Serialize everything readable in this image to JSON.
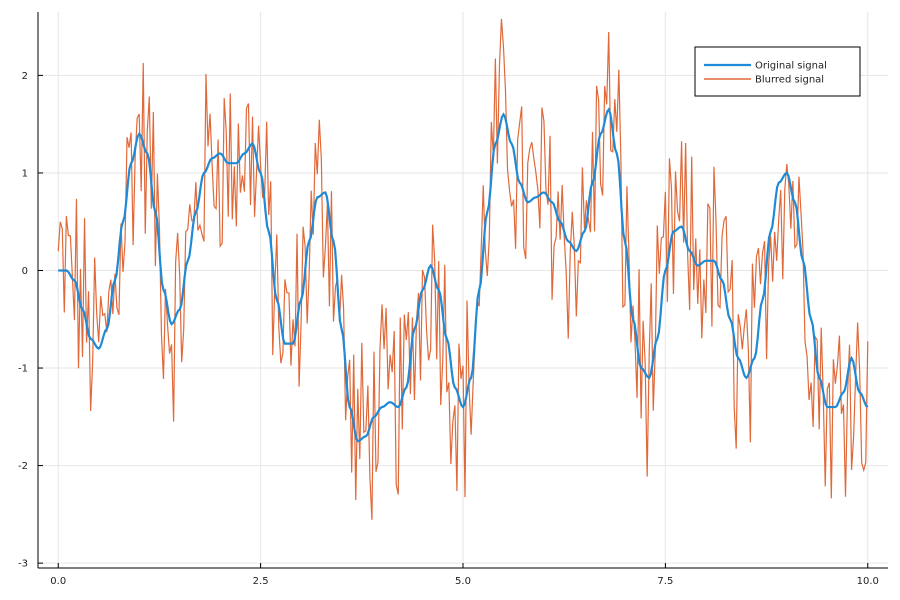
{
  "chart_data": {
    "type": "line",
    "title": "",
    "xlabel": "",
    "ylabel": "",
    "xlim": [
      -0.25,
      10.25
    ],
    "ylim": [
      -3.05,
      2.65
    ],
    "grid": true,
    "legend_position": "top-right",
    "x_ticks": [
      {
        "value": 0,
        "label": "0.0"
      },
      {
        "value": 2.5,
        "label": "2.5"
      },
      {
        "value": 5,
        "label": "5.0"
      },
      {
        "value": 7.5,
        "label": "7.5"
      },
      {
        "value": 10,
        "label": "10.0"
      }
    ],
    "y_ticks": [
      {
        "value": -3,
        "label": "-3"
      },
      {
        "value": -2,
        "label": "-2"
      },
      {
        "value": -1,
        "label": "-1"
      },
      {
        "value": 0,
        "label": "0"
      },
      {
        "value": 1,
        "label": "1"
      },
      {
        "value": 2,
        "label": "2"
      }
    ],
    "series": [
      {
        "name": "Original signal",
        "color": "#1f8ad6",
        "x": [
          0,
          0.1,
          0.2,
          0.3,
          0.4,
          0.5,
          0.6,
          0.7,
          0.8,
          0.9,
          1.0,
          1.1,
          1.2,
          1.3,
          1.4,
          1.5,
          1.6,
          1.7,
          1.8,
          1.9,
          2.0,
          2.1,
          2.2,
          2.3,
          2.4,
          2.5,
          2.6,
          2.7,
          2.8,
          2.9,
          3.0,
          3.1,
          3.2,
          3.3,
          3.4,
          3.5,
          3.6,
          3.7,
          3.8,
          3.9,
          4.0,
          4.1,
          4.2,
          4.3,
          4.4,
          4.5,
          4.6,
          4.7,
          4.8,
          4.9,
          5.0,
          5.1,
          5.2,
          5.3,
          5.4,
          5.5,
          5.6,
          5.7,
          5.8,
          5.9,
          6.0,
          6.1,
          6.2,
          6.3,
          6.4,
          6.5,
          6.6,
          6.7,
          6.8,
          6.9,
          7.0,
          7.1,
          7.2,
          7.3,
          7.4,
          7.5,
          7.6,
          7.7,
          7.8,
          7.9,
          8.0,
          8.1,
          8.2,
          8.3,
          8.4,
          8.5,
          8.6,
          8.7,
          8.8,
          8.9,
          9.0,
          9.1,
          9.2,
          9.3,
          9.4,
          9.5,
          9.6,
          9.7,
          9.8,
          9.9,
          10.0
        ],
        "values": [
          0.0,
          0.0,
          -0.1,
          -0.4,
          -0.7,
          -0.8,
          -0.6,
          -0.1,
          0.5,
          1.1,
          1.4,
          1.2,
          0.6,
          -0.2,
          -0.55,
          -0.4,
          0.1,
          0.6,
          1.0,
          1.15,
          1.2,
          1.1,
          1.1,
          1.2,
          1.3,
          1.0,
          0.4,
          -0.3,
          -0.75,
          -0.75,
          -0.3,
          0.3,
          0.75,
          0.8,
          0.3,
          -0.6,
          -1.4,
          -1.75,
          -1.7,
          -1.5,
          -1.4,
          -1.35,
          -1.4,
          -1.2,
          -0.6,
          -0.2,
          0.05,
          -0.2,
          -0.7,
          -1.2,
          -1.4,
          -1.1,
          -0.2,
          0.6,
          1.3,
          1.6,
          1.3,
          0.9,
          0.7,
          0.75,
          0.8,
          0.7,
          0.5,
          0.3,
          0.2,
          0.4,
          0.9,
          1.4,
          1.65,
          1.2,
          0.3,
          -0.5,
          -1.0,
          -1.1,
          -0.7,
          0.0,
          0.4,
          0.45,
          0.2,
          0.05,
          0.1,
          0.1,
          -0.1,
          -0.5,
          -0.9,
          -1.1,
          -0.9,
          -0.3,
          0.4,
          0.9,
          1.0,
          0.7,
          0.1,
          -0.5,
          -1.1,
          -1.4,
          -1.4,
          -1.25,
          -0.9,
          -1.25,
          -1.4
        ]
      },
      {
        "name": "Blurred signal",
        "color": "#e0693a",
        "x_start": 0,
        "x_step": 0.025,
        "noise_amplitude": 0.95,
        "note": "original signal plus dense random noise (~400 samples)"
      }
    ]
  }
}
